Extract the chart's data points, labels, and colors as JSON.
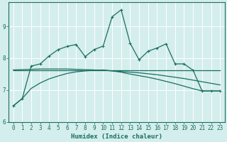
{
  "xlabel": "Humidex (Indice chaleur)",
  "bg_color": "#d4eeed",
  "grid_color": "#ffffff",
  "line_color": "#1a6e60",
  "xlim": [
    -0.5,
    23.5
  ],
  "ylim": [
    6.0,
    9.75
  ],
  "yticks": [
    6,
    7,
    8,
    9
  ],
  "xticks": [
    0,
    1,
    2,
    3,
    4,
    5,
    6,
    7,
    8,
    9,
    10,
    11,
    12,
    13,
    14,
    15,
    16,
    17,
    18,
    19,
    20,
    21,
    22,
    23
  ],
  "line1_x": [
    0,
    1,
    2,
    3,
    4,
    5,
    6,
    7,
    8,
    9,
    10,
    11,
    12,
    13,
    14,
    15,
    16,
    17,
    18,
    19,
    20,
    21,
    22,
    23
  ],
  "line1_y": [
    6.5,
    6.73,
    7.75,
    7.82,
    8.07,
    8.27,
    8.37,
    8.43,
    8.05,
    8.27,
    8.38,
    9.3,
    9.52,
    8.47,
    7.95,
    8.22,
    8.32,
    8.45,
    7.82,
    7.82,
    7.62,
    6.97,
    6.97,
    6.97
  ],
  "line2_x": [
    0,
    1,
    2,
    3,
    4,
    5,
    6,
    7,
    8,
    9,
    10,
    11,
    12,
    13,
    14,
    15,
    16,
    17,
    18,
    19,
    20,
    21,
    22,
    23
  ],
  "line2_y": [
    7.63,
    7.63,
    7.63,
    7.63,
    7.63,
    7.63,
    7.63,
    7.63,
    7.63,
    7.63,
    7.63,
    7.63,
    7.63,
    7.63,
    7.63,
    7.63,
    7.63,
    7.63,
    7.63,
    7.63,
    7.63,
    7.63,
    7.63,
    7.63
  ],
  "line3_x": [
    0,
    1,
    2,
    3,
    4,
    5,
    6,
    7,
    8,
    9,
    10,
    11,
    12,
    13,
    14,
    15,
    16,
    17,
    18,
    19,
    20,
    21,
    22,
    23
  ],
  "line3_y": [
    7.63,
    7.64,
    7.65,
    7.66,
    7.66,
    7.66,
    7.66,
    7.65,
    7.64,
    7.63,
    7.62,
    7.6,
    7.58,
    7.56,
    7.54,
    7.51,
    7.48,
    7.44,
    7.4,
    7.36,
    7.31,
    7.26,
    7.21,
    7.16
  ],
  "line4_x": [
    0,
    1,
    2,
    3,
    4,
    5,
    6,
    7,
    8,
    9,
    10,
    11,
    12,
    13,
    14,
    15,
    16,
    17,
    18,
    19,
    20,
    21,
    22,
    23
  ],
  "line4_y": [
    6.5,
    6.73,
    7.05,
    7.22,
    7.35,
    7.44,
    7.52,
    7.57,
    7.6,
    7.62,
    7.63,
    7.6,
    7.56,
    7.5,
    7.45,
    7.4,
    7.34,
    7.27,
    7.2,
    7.12,
    7.04,
    6.97,
    6.97,
    6.97
  ]
}
